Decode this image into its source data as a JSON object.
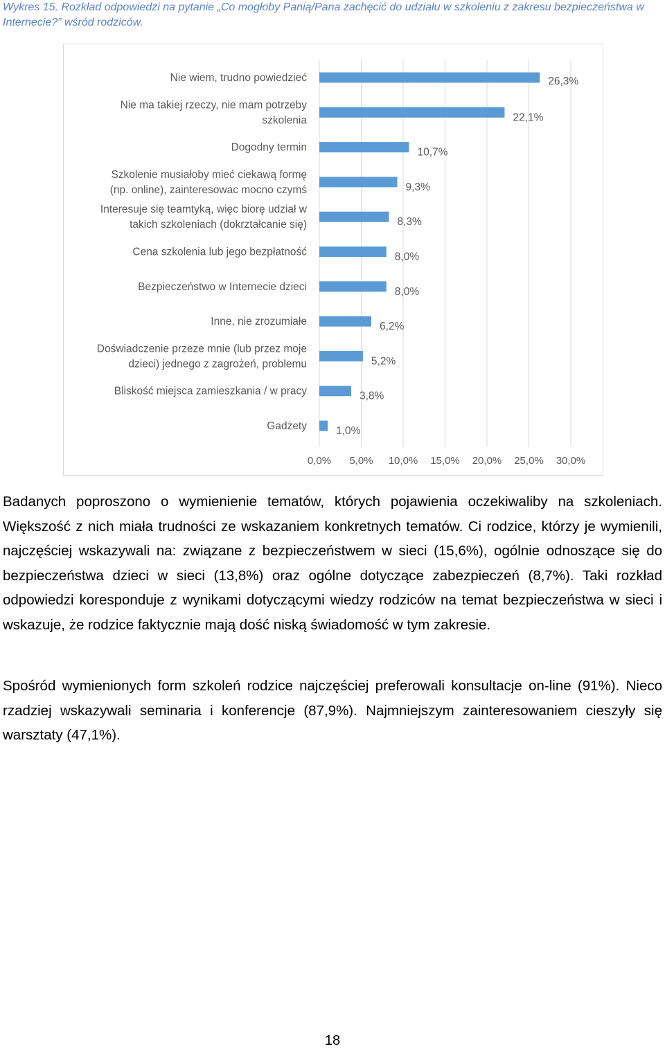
{
  "caption": "Wykres 15. Rozkład odpowiedzi na pytanie „Co mogłoby Panią/Pana zachęcić do udziału w szkoleniu z zakresu bezpieczeństwa w Internecie?” wśród rodziców.",
  "chart_data": {
    "type": "bar",
    "orientation": "horizontal",
    "categories": [
      "Nie wiem, trudno powiedzieć",
      "Nie ma takiej rzeczy, nie mam potrzeby szkolenia",
      "Dogodny termin",
      "Szkolenie musiałoby mieć ciekawą formę (np. online), zainteresowac mocno czymś",
      "Interesuje się teamtyką, więc biorę udział w takich szkoleniach (dokrztałcanie się)",
      "Cena szkolenia lub jego bezpłatność",
      "Bezpieczeństwo w Internecie dzieci",
      "Inne, nie zrozumiałe",
      "Doświadczenie przeze mnie (lub przez moje dzieci) jednego z zagrożeń, problemu",
      "Bliskość miejsca zamieszkania / w pracy",
      "Gadżety"
    ],
    "category_lines": [
      [
        "Nie wiem, trudno powiedzieć"
      ],
      [
        "Nie ma takiej rzeczy, nie mam potrzeby",
        "szkolenia"
      ],
      [
        "Dogodny termin"
      ],
      [
        "Szkolenie musiałoby mieć ciekawą formę",
        "(np. online), zainteresowac mocno czymś"
      ],
      [
        "Interesuje się teamtyką, więc biorę udział w",
        "takich szkoleniach (dokrztałcanie się)"
      ],
      [
        "Cena szkolenia lub jego bezpłatność"
      ],
      [
        "Bezpieczeństwo w Internecie dzieci"
      ],
      [
        "Inne, nie zrozumiałe"
      ],
      [
        "Doświadczenie przeze mnie (lub przez moje",
        "dzieci) jednego z zagrożeń, problemu"
      ],
      [
        "Bliskość miejsca zamieszkania / w pracy"
      ],
      [
        "Gadżety"
      ]
    ],
    "values": [
      26.3,
      22.1,
      10.7,
      9.3,
      8.3,
      8.0,
      8.0,
      6.2,
      5.2,
      3.8,
      1.0
    ],
    "value_labels": [
      "26,3%",
      "22,1%",
      "10,7%",
      "9,3%",
      "8,3%",
      "8,0%",
      "8,0%",
      "6,2%",
      "5,2%",
      "3,8%",
      "1,0%"
    ],
    "xlim": [
      0,
      30
    ],
    "xticks": [
      "0,0%",
      "5,0%",
      "10,0%",
      "15,0%",
      "20,0%",
      "25,0%",
      "30,0%"
    ],
    "grid": true,
    "bar_color": "#5b9bd5"
  },
  "paragraph1": "Badanych poproszono o wymienienie tematów, których pojawienia oczekiwaliby na szkoleniach. Większość z nich miała trudności ze wskazaniem konkretnych tematów. Ci rodzice, którzy je wymienili, najczęściej wskazywali na: związane z bezpieczeństwem w sieci (15,6%), ogólnie odnoszące się do bezpieczeństwa dzieci w sieci (13,8%) oraz ogólne dotyczące zabezpieczeń (8,7%). Taki rozkład odpowiedzi koresponduje z wynikami dotyczącymi wiedzy rodziców na temat bezpieczeństwa w sieci i wskazuje, że rodzice faktycznie mają dość niską świadomość w tym zakresie.",
  "paragraph2": "Spośród wymienionych form szkoleń rodzice najczęściej preferowali konsultacje on-line (91%). Nieco rzadziej wskazywali seminaria i konferencje (87,9%). Najmniejszym zainteresowaniem cieszyły się warsztaty (47,1%).",
  "page_number": "18"
}
